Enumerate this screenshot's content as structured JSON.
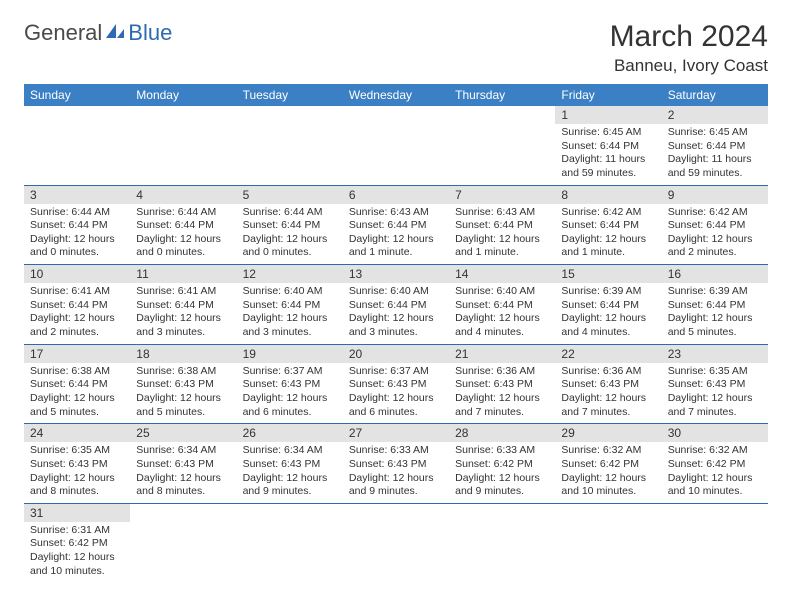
{
  "logo": {
    "text1": "General",
    "text2": "Blue"
  },
  "title": "March 2024",
  "location": "Banneu, Ivory Coast",
  "colors": {
    "header_bg": "#3b7fc4",
    "header_text": "#ffffff",
    "daynum_bg": "#e3e3e3",
    "row_border": "#2d6ab3",
    "logo_blue": "#2d6ab3"
  },
  "weekdays": [
    "Sunday",
    "Monday",
    "Tuesday",
    "Wednesday",
    "Thursday",
    "Friday",
    "Saturday"
  ],
  "cells": [
    [
      null,
      null,
      null,
      null,
      null,
      {
        "n": "1",
        "sr": "6:45 AM",
        "ss": "6:44 PM",
        "dl": "11 hours and 59 minutes."
      },
      {
        "n": "2",
        "sr": "6:45 AM",
        "ss": "6:44 PM",
        "dl": "11 hours and 59 minutes."
      }
    ],
    [
      {
        "n": "3",
        "sr": "6:44 AM",
        "ss": "6:44 PM",
        "dl": "12 hours and 0 minutes."
      },
      {
        "n": "4",
        "sr": "6:44 AM",
        "ss": "6:44 PM",
        "dl": "12 hours and 0 minutes."
      },
      {
        "n": "5",
        "sr": "6:44 AM",
        "ss": "6:44 PM",
        "dl": "12 hours and 0 minutes."
      },
      {
        "n": "6",
        "sr": "6:43 AM",
        "ss": "6:44 PM",
        "dl": "12 hours and 1 minute."
      },
      {
        "n": "7",
        "sr": "6:43 AM",
        "ss": "6:44 PM",
        "dl": "12 hours and 1 minute."
      },
      {
        "n": "8",
        "sr": "6:42 AM",
        "ss": "6:44 PM",
        "dl": "12 hours and 1 minute."
      },
      {
        "n": "9",
        "sr": "6:42 AM",
        "ss": "6:44 PM",
        "dl": "12 hours and 2 minutes."
      }
    ],
    [
      {
        "n": "10",
        "sr": "6:41 AM",
        "ss": "6:44 PM",
        "dl": "12 hours and 2 minutes."
      },
      {
        "n": "11",
        "sr": "6:41 AM",
        "ss": "6:44 PM",
        "dl": "12 hours and 3 minutes."
      },
      {
        "n": "12",
        "sr": "6:40 AM",
        "ss": "6:44 PM",
        "dl": "12 hours and 3 minutes."
      },
      {
        "n": "13",
        "sr": "6:40 AM",
        "ss": "6:44 PM",
        "dl": "12 hours and 3 minutes."
      },
      {
        "n": "14",
        "sr": "6:40 AM",
        "ss": "6:44 PM",
        "dl": "12 hours and 4 minutes."
      },
      {
        "n": "15",
        "sr": "6:39 AM",
        "ss": "6:44 PM",
        "dl": "12 hours and 4 minutes."
      },
      {
        "n": "16",
        "sr": "6:39 AM",
        "ss": "6:44 PM",
        "dl": "12 hours and 5 minutes."
      }
    ],
    [
      {
        "n": "17",
        "sr": "6:38 AM",
        "ss": "6:44 PM",
        "dl": "12 hours and 5 minutes."
      },
      {
        "n": "18",
        "sr": "6:38 AM",
        "ss": "6:43 PM",
        "dl": "12 hours and 5 minutes."
      },
      {
        "n": "19",
        "sr": "6:37 AM",
        "ss": "6:43 PM",
        "dl": "12 hours and 6 minutes."
      },
      {
        "n": "20",
        "sr": "6:37 AM",
        "ss": "6:43 PM",
        "dl": "12 hours and 6 minutes."
      },
      {
        "n": "21",
        "sr": "6:36 AM",
        "ss": "6:43 PM",
        "dl": "12 hours and 7 minutes."
      },
      {
        "n": "22",
        "sr": "6:36 AM",
        "ss": "6:43 PM",
        "dl": "12 hours and 7 minutes."
      },
      {
        "n": "23",
        "sr": "6:35 AM",
        "ss": "6:43 PM",
        "dl": "12 hours and 7 minutes."
      }
    ],
    [
      {
        "n": "24",
        "sr": "6:35 AM",
        "ss": "6:43 PM",
        "dl": "12 hours and 8 minutes."
      },
      {
        "n": "25",
        "sr": "6:34 AM",
        "ss": "6:43 PM",
        "dl": "12 hours and 8 minutes."
      },
      {
        "n": "26",
        "sr": "6:34 AM",
        "ss": "6:43 PM",
        "dl": "12 hours and 9 minutes."
      },
      {
        "n": "27",
        "sr": "6:33 AM",
        "ss": "6:43 PM",
        "dl": "12 hours and 9 minutes."
      },
      {
        "n": "28",
        "sr": "6:33 AM",
        "ss": "6:42 PM",
        "dl": "12 hours and 9 minutes."
      },
      {
        "n": "29",
        "sr": "6:32 AM",
        "ss": "6:42 PM",
        "dl": "12 hours and 10 minutes."
      },
      {
        "n": "30",
        "sr": "6:32 AM",
        "ss": "6:42 PM",
        "dl": "12 hours and 10 minutes."
      }
    ],
    [
      {
        "n": "31",
        "sr": "6:31 AM",
        "ss": "6:42 PM",
        "dl": "12 hours and 10 minutes."
      },
      null,
      null,
      null,
      null,
      null,
      null
    ]
  ],
  "labels": {
    "sunrise": "Sunrise: ",
    "sunset": "Sunset: ",
    "daylight": "Daylight: "
  }
}
